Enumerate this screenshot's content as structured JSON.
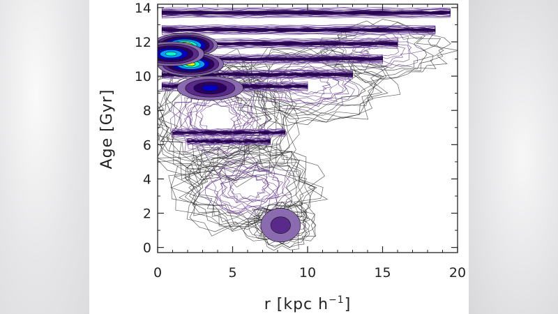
{
  "chart_data": {
    "type": "heatmap",
    "title": "",
    "xlabel_main": "r [kpc h",
    "xlabel_sup": "−1",
    "xlabel_end": "]",
    "ylabel": "Age [Gyr]",
    "xlim": [
      0,
      20
    ],
    "ylim": [
      -0.3,
      14.2
    ],
    "x_ticks": [
      0,
      5,
      10,
      15,
      20
    ],
    "y_ticks": [
      0,
      2,
      4,
      6,
      8,
      10,
      12,
      14
    ],
    "colorscale": [
      "#ffffff",
      "#8a6bb0",
      "#5a2a8a",
      "#2c0060",
      "#0000c8",
      "#00a0ff",
      "#00ffcc",
      "#ffff00",
      "#ff2000"
    ],
    "density_peaks": [
      {
        "r": 1.8,
        "age": 11.8,
        "level": 1.0
      },
      {
        "r": 2.2,
        "age": 10.7,
        "level": 0.85
      },
      {
        "r": 0.9,
        "age": 11.3,
        "level": 0.7
      },
      {
        "r": 3.5,
        "age": 9.3,
        "level": 0.55
      },
      {
        "r": 8.2,
        "age": 1.3,
        "level": 0.2
      }
    ],
    "horizontal_bands": [
      {
        "age": 13.7,
        "r_min": 0.3,
        "r_max": 19.5,
        "level": 0.45
      },
      {
        "age": 12.7,
        "r_min": 0.3,
        "r_max": 18.5,
        "level": 0.4
      },
      {
        "age": 11.9,
        "r_min": 0.3,
        "r_max": 16.0,
        "level": 0.4
      },
      {
        "age": 11.0,
        "r_min": 0.3,
        "r_max": 15.0,
        "level": 0.35
      },
      {
        "age": 10.1,
        "r_min": 0.3,
        "r_max": 13.0,
        "level": 0.35
      },
      {
        "age": 9.4,
        "r_min": 0.3,
        "r_max": 10.0,
        "level": 0.3
      },
      {
        "age": 6.7,
        "r_min": 1.0,
        "r_max": 8.5,
        "level": 0.15
      },
      {
        "age": 6.2,
        "r_min": 2.0,
        "r_max": 7.5,
        "level": 0.12
      }
    ]
  }
}
